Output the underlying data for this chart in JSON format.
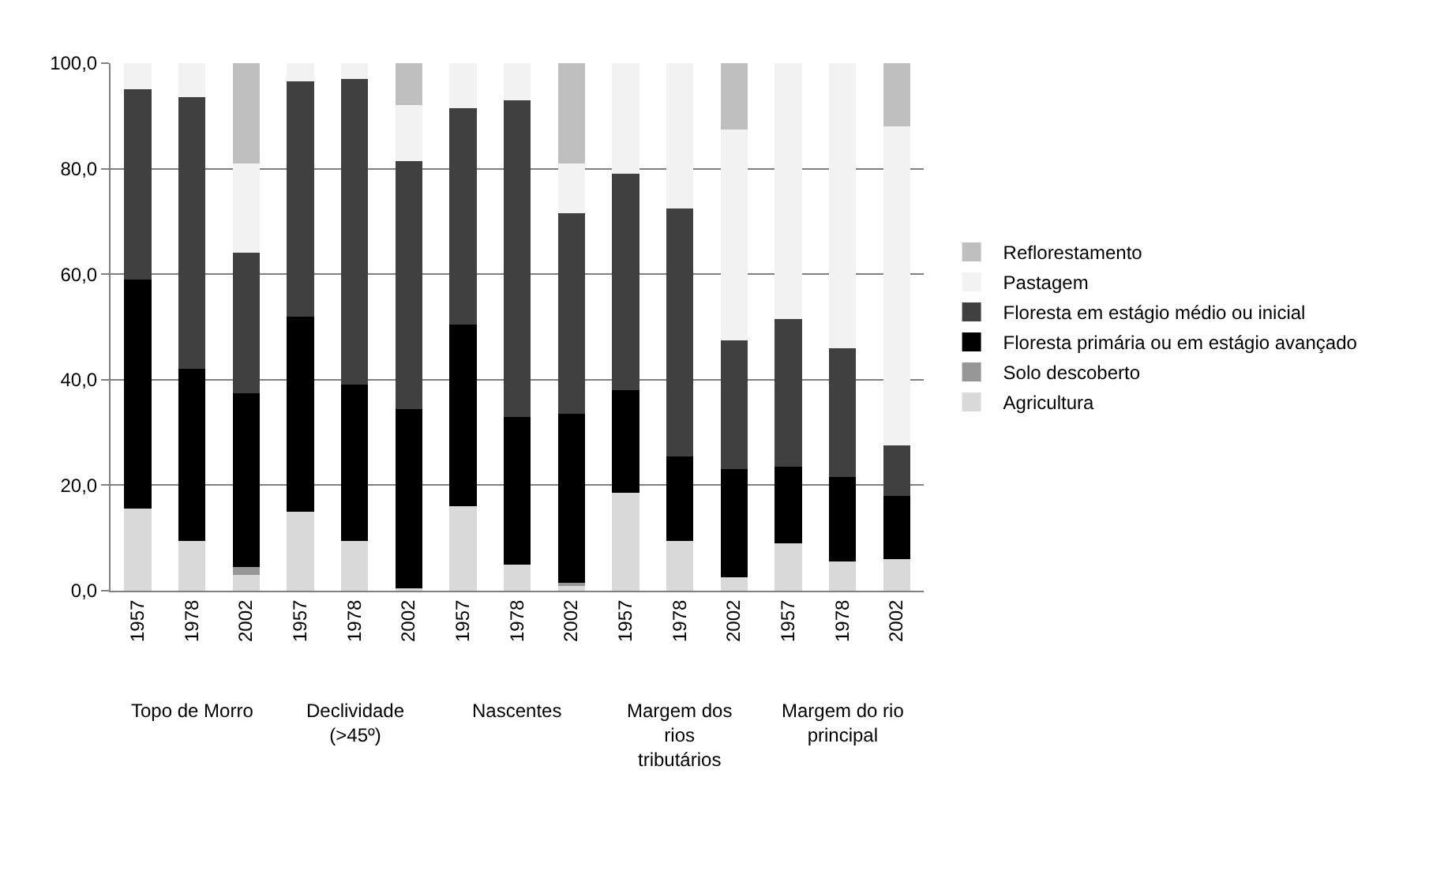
{
  "chart_data": {
    "type": "bar",
    "stacked": true,
    "categories": [
      "1957",
      "1978",
      "2002",
      "1957",
      "1978",
      "2002",
      "1957",
      "1978",
      "2002",
      "1957",
      "1978",
      "2002",
      "1957",
      "1978",
      "2002"
    ],
    "series": [
      {
        "name": "Agricultura",
        "color": "#d9d9d9",
        "values": [
          15.5,
          9.5,
          3,
          15,
          9.5,
          0.5,
          16,
          5,
          1,
          18.5,
          9.5,
          2.5,
          9,
          5.5,
          6
        ]
      },
      {
        "name": "Solo descoberto",
        "color": "#969696",
        "values": [
          0,
          0,
          1.5,
          0,
          0,
          0,
          0,
          0,
          0.5,
          0,
          0,
          0,
          0,
          0,
          0
        ]
      },
      {
        "name": "Floresta primária ou em estágio avançado",
        "color": "#000000",
        "values": [
          43.5,
          32.5,
          33,
          37,
          29.5,
          34,
          34.5,
          28,
          32,
          19.5,
          16,
          20.5,
          14.5,
          16,
          12
        ]
      },
      {
        "name": "Floresta em estágio médio ou inicial",
        "color": "#404040",
        "values": [
          36,
          51.5,
          26.5,
          44.5,
          58,
          47,
          41,
          60,
          38,
          41,
          47,
          24.5,
          28,
          24.5,
          9.5
        ]
      },
      {
        "name": "Pastagem",
        "color": "#f2f2f2",
        "values": [
          5,
          6.5,
          17,
          3.5,
          3,
          10.5,
          8.5,
          7,
          9.5,
          21,
          27.5,
          40,
          48.5,
          54,
          60.5
        ]
      },
      {
        "name": "Reflorestamento",
        "color": "#bfbfbf",
        "values": [
          0,
          0,
          19,
          0,
          0,
          8,
          0,
          0,
          19,
          0,
          0,
          12.5,
          0,
          0,
          12
        ]
      }
    ],
    "ylim": [
      0,
      100
    ],
    "yticks": [
      {
        "value": 0,
        "label": "0,0"
      },
      {
        "value": 20,
        "label": "20,0"
      },
      {
        "value": 40,
        "label": "40,0"
      },
      {
        "value": 60,
        "label": "60,0"
      },
      {
        "value": 80,
        "label": "80,0"
      },
      {
        "value": 100,
        "label": "100,0"
      }
    ],
    "grid": "y",
    "legend": "right",
    "annotations": [
      "Topo de Morro",
      "Declividade (>45º)",
      "Nascentes",
      "Margem dos rios tributários",
      "Margem do rio principal"
    ]
  }
}
